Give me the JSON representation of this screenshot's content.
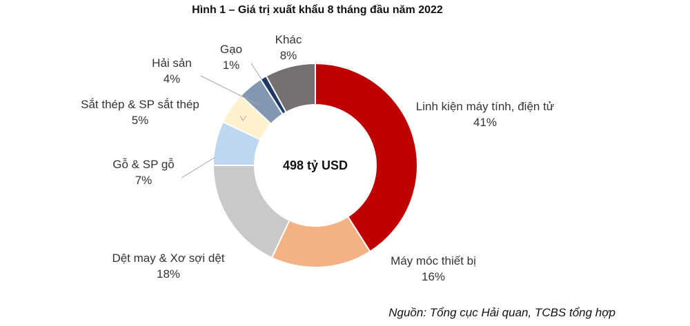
{
  "title": "Hình 1 – Giá trị xuất khẩu 8 tháng đầu năm 2022",
  "source": "Nguồn: Tổng cục Hải quan, TCBS tổng hợp",
  "chart_data": {
    "type": "pie",
    "donut": true,
    "center_label": "498 tỷ USD",
    "slices": [
      {
        "name": "Linh kiện máy tính, điện tử",
        "value": 41,
        "label": "41%",
        "color": "#c00000"
      },
      {
        "name": "Máy móc thiết bị",
        "value": 16,
        "label": "16%",
        "color": "#f4b183"
      },
      {
        "name": "Dệt may & Xơ sợi dệt",
        "value": 18,
        "label": "18%",
        "color": "#c9c9c9"
      },
      {
        "name": "Gỗ & SP gỗ",
        "value": 7,
        "label": "7%",
        "color": "#bdd7ee"
      },
      {
        "name": "Sắt thép & SP sắt thép",
        "value": 5,
        "label": "5%",
        "color": "#fff2cc"
      },
      {
        "name": "Hải sản",
        "value": 4,
        "label": "4%",
        "color": "#8497b0"
      },
      {
        "name": "Gạo",
        "value": 1,
        "label": "1%",
        "color": "#1f3864"
      },
      {
        "name": "Khác",
        "value": 8,
        "label": "8%",
        "color": "#767171"
      }
    ]
  }
}
